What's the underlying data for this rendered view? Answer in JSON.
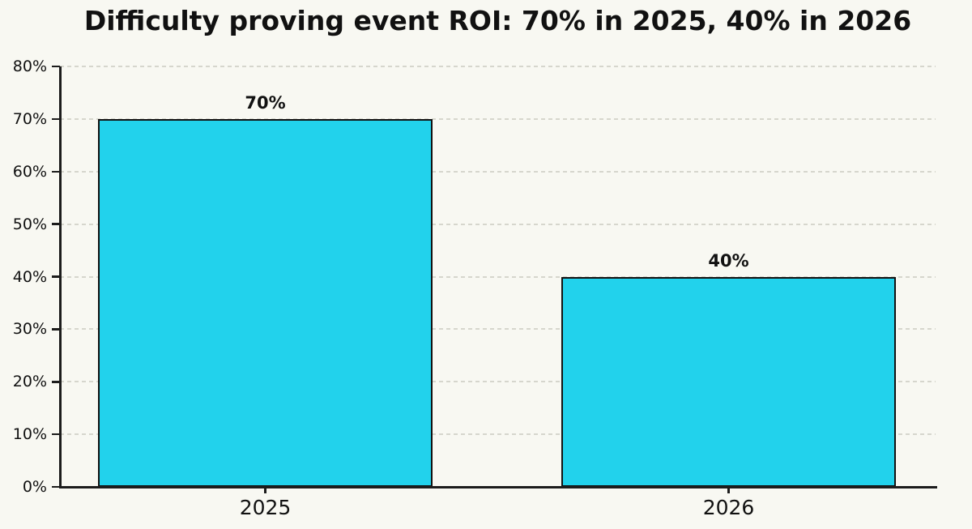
{
  "chart_data": {
    "type": "bar",
    "title": "Difficulty proving event ROI: 70% in 2025, 40% in 2026",
    "categories": [
      "2025",
      "2026"
    ],
    "values": [
      70,
      40
    ],
    "value_labels": [
      "70%",
      "40%"
    ],
    "ylim": [
      0,
      80
    ],
    "ytick_step": 10,
    "ytick_labels": [
      "0%",
      "10%",
      "20%",
      "30%",
      "40%",
      "50%",
      "60%",
      "70%",
      "80%"
    ],
    "xlabel": "",
    "ylabel": "",
    "grid": "dashed-horizontal",
    "legend": "none",
    "colors": {
      "background": "#f8f8f2",
      "bar_fill": "#22d2ec",
      "bar_edge": "#121212",
      "axis": "#1c1c1c",
      "grid": "#d6d6cd",
      "text": "#111111"
    }
  }
}
